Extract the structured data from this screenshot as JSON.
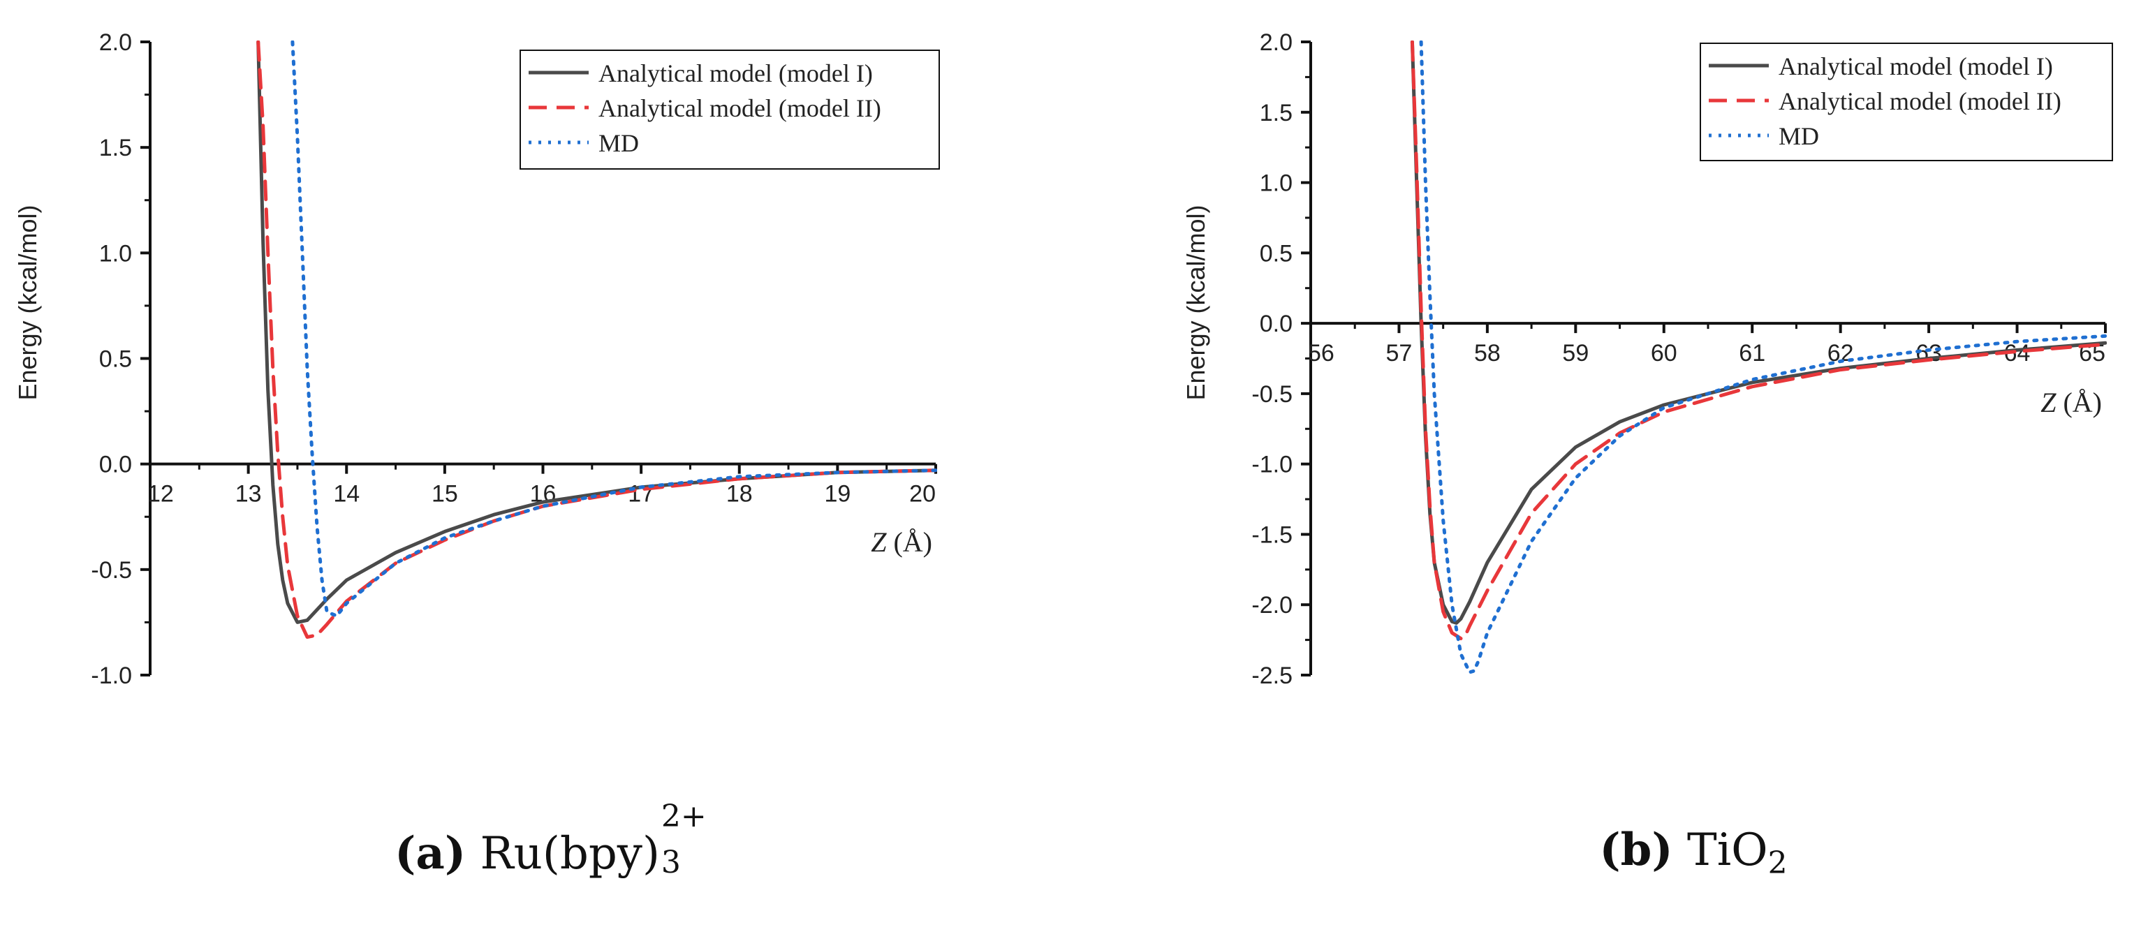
{
  "chart_data": [
    {
      "type": "line",
      "panel_label": "(a)",
      "title": "Ru(bpy)",
      "title_sub": "3",
      "title_sup": "2+",
      "xlabel_var": "Z",
      "xlabel_unit": "(Å)",
      "ylabel": "Energy (kcal/mol)",
      "xlim": [
        12,
        20
      ],
      "ylim": [
        -1.0,
        2.0
      ],
      "x_ticks": [
        "12",
        "13",
        "14",
        "15",
        "16",
        "17",
        "18",
        "19",
        "20"
      ],
      "y_ticks": [
        "-1.0",
        "-0.5",
        "0.0",
        "0.5",
        "1.0",
        "1.5",
        "2.0"
      ],
      "x_tick_values": [
        12,
        13,
        14,
        15,
        16,
        17,
        18,
        19,
        20
      ],
      "y_tick_values": [
        -1.0,
        -0.5,
        0.0,
        0.5,
        1.0,
        1.5,
        2.0
      ],
      "legend_position": "top-right",
      "series": [
        {
          "name": "Analytical model (model I)",
          "style": "solid",
          "color": "#4a4a4a",
          "x": [
            13.1,
            13.15,
            13.2,
            13.25,
            13.3,
            13.35,
            13.4,
            13.5,
            13.6,
            13.8,
            14.0,
            14.5,
            15.0,
            15.5,
            16.0,
            17.0,
            18.0,
            19.0,
            20.0
          ],
          "y": [
            2.0,
            1.05,
            0.35,
            -0.1,
            -0.38,
            -0.55,
            -0.66,
            -0.75,
            -0.74,
            -0.64,
            -0.55,
            -0.42,
            -0.32,
            -0.24,
            -0.18,
            -0.11,
            -0.07,
            -0.04,
            -0.03
          ]
        },
        {
          "name": "Analytical model (model II)",
          "style": "dashed",
          "color": "#e8373a",
          "x": [
            13.1,
            13.15,
            13.2,
            13.25,
            13.3,
            13.35,
            13.4,
            13.5,
            13.6,
            13.7,
            13.8,
            14.0,
            14.5,
            15.0,
            15.5,
            16.0,
            17.0,
            18.0,
            19.0,
            20.0
          ],
          "y": [
            2.0,
            1.6,
            1.0,
            0.45,
            0.05,
            -0.25,
            -0.48,
            -0.72,
            -0.82,
            -0.81,
            -0.76,
            -0.65,
            -0.47,
            -0.36,
            -0.27,
            -0.2,
            -0.12,
            -0.07,
            -0.04,
            -0.03
          ]
        },
        {
          "name": "MD",
          "style": "dotted",
          "color": "#1f6fd1",
          "x": [
            13.45,
            13.5,
            13.55,
            13.6,
            13.65,
            13.7,
            13.75,
            13.8,
            13.9,
            14.0,
            14.5,
            15.0,
            15.5,
            16.0,
            17.0,
            18.0,
            19.0,
            20.0
          ],
          "y": [
            2.0,
            1.55,
            1.0,
            0.45,
            0.05,
            -0.3,
            -0.55,
            -0.7,
            -0.72,
            -0.66,
            -0.47,
            -0.35,
            -0.27,
            -0.2,
            -0.11,
            -0.06,
            -0.04,
            -0.03
          ]
        }
      ]
    },
    {
      "type": "line",
      "panel_label": "(b)",
      "title": "TiO",
      "title_sub": "2",
      "title_sup": "",
      "xlabel_var": "Z",
      "xlabel_unit": "(Å)",
      "ylabel": "Energy (kcal/mol)",
      "xlim": [
        56,
        65
      ],
      "ylim": [
        -2.5,
        2.0
      ],
      "x_ticks": [
        "56",
        "57",
        "58",
        "59",
        "60",
        "61",
        "62",
        "63",
        "64",
        "65"
      ],
      "y_ticks": [
        "-2.5",
        "-2.0",
        "-1.5",
        "-1.0",
        "-0.5",
        "0.0",
        "0.5",
        "1.0",
        "1.5",
        "2.0"
      ],
      "x_tick_values": [
        56,
        57,
        58,
        59,
        60,
        61,
        62,
        63,
        64,
        65
      ],
      "y_tick_values": [
        -2.5,
        -2.0,
        -1.5,
        -1.0,
        -0.5,
        0.0,
        0.5,
        1.0,
        1.5,
        2.0
      ],
      "legend_position": "top-right",
      "series": [
        {
          "name": "Analytical model (model I)",
          "style": "solid",
          "color": "#4a4a4a",
          "x": [
            57.15,
            57.2,
            57.25,
            57.3,
            57.35,
            57.4,
            57.5,
            57.6,
            57.65,
            57.7,
            57.8,
            58.0,
            58.5,
            59.0,
            59.5,
            60.0,
            61.0,
            62.0,
            63.0,
            64.0,
            65.0
          ],
          "y": [
            2.0,
            1.0,
            0.0,
            -0.8,
            -1.35,
            -1.7,
            -2.0,
            -2.12,
            -2.13,
            -2.1,
            -1.98,
            -1.7,
            -1.18,
            -0.88,
            -0.7,
            -0.58,
            -0.42,
            -0.32,
            -0.25,
            -0.19,
            -0.14
          ]
        },
        {
          "name": "Analytical model (model II)",
          "style": "dashed",
          "color": "#e8373a",
          "x": [
            57.15,
            57.2,
            57.25,
            57.3,
            57.35,
            57.4,
            57.5,
            57.6,
            57.7,
            57.75,
            57.8,
            58.0,
            58.5,
            59.0,
            59.5,
            60.0,
            61.0,
            62.0,
            63.0,
            64.0,
            65.0
          ],
          "y": [
            2.0,
            1.1,
            0.1,
            -0.75,
            -1.3,
            -1.7,
            -2.05,
            -2.2,
            -2.24,
            -2.22,
            -2.15,
            -1.9,
            -1.35,
            -1.0,
            -0.78,
            -0.63,
            -0.45,
            -0.33,
            -0.26,
            -0.2,
            -0.15
          ]
        },
        {
          "name": "MD",
          "style": "dotted",
          "color": "#1f6fd1",
          "x": [
            57.25,
            57.3,
            57.35,
            57.4,
            57.5,
            57.6,
            57.7,
            57.8,
            57.85,
            57.9,
            58.0,
            58.5,
            59.0,
            59.5,
            60.0,
            61.0,
            62.0,
            63.0,
            64.0,
            65.0
          ],
          "y": [
            2.0,
            1.0,
            0.2,
            -0.5,
            -1.4,
            -2.0,
            -2.35,
            -2.48,
            -2.47,
            -2.4,
            -2.2,
            -1.55,
            -1.1,
            -0.8,
            -0.6,
            -0.4,
            -0.27,
            -0.19,
            -0.13,
            -0.09
          ]
        }
      ]
    }
  ]
}
